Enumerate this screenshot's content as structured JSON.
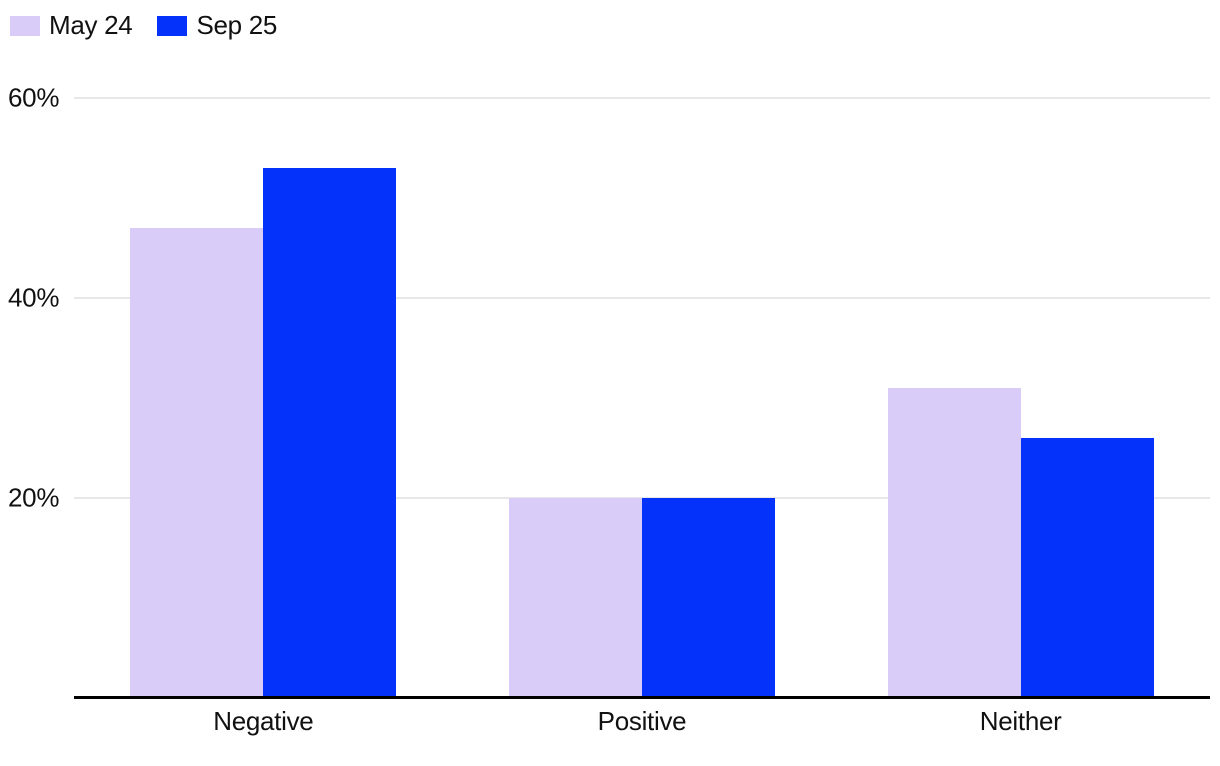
{
  "chart_data": {
    "type": "bar",
    "title": "",
    "xlabel": "",
    "ylabel": "",
    "categories": [
      "Negative",
      "Positive",
      "Neither"
    ],
    "series": [
      {
        "name": "May 24",
        "color": "#daccf8",
        "values": [
          47,
          20,
          31
        ]
      },
      {
        "name": "Sep 25",
        "color": "#0532fb",
        "values": [
          53,
          20,
          26
        ]
      }
    ],
    "ylim": [
      0,
      60
    ],
    "yticks": [
      {
        "value": 20,
        "label": "20%"
      },
      {
        "value": 40,
        "label": "40%"
      },
      {
        "value": 60,
        "label": "60%"
      }
    ],
    "grid": "horizontal",
    "legend_position": "top-left",
    "colors": {
      "grid": "#e8e8e8",
      "axis": "#000000",
      "text": "#111111",
      "background": "#ffffff"
    }
  }
}
